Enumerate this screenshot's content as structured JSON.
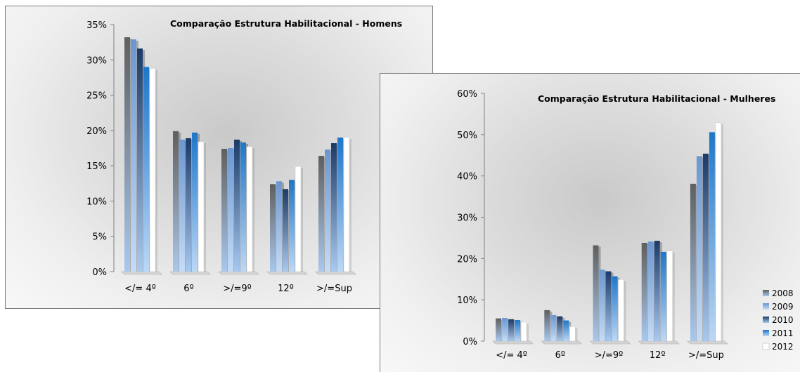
{
  "chart_data": [
    {
      "type": "bar",
      "title": "Comparação Estrutura Habilitacional - Homens",
      "categories": [
        "</= 4º",
        "6º",
        ">/=9º",
        "12º",
        ">/=Sup"
      ],
      "y_ticks": [
        "0%",
        "5%",
        "10%",
        "15%",
        "20%",
        "25%",
        "30%",
        "35%"
      ],
      "ylim": [
        0,
        35
      ],
      "grid": false,
      "series": [
        {
          "values": [
            33.2,
            19.9,
            17.4,
            12.4,
            16.4
          ]
        },
        {
          "values": [
            32.9,
            18.7,
            17.5,
            12.8,
            17.3
          ]
        },
        {
          "values": [
            31.6,
            18.9,
            18.7,
            11.7,
            18.2
          ]
        },
        {
          "values": [
            29.0,
            19.7,
            18.3,
            13.0,
            19.0
          ]
        },
        {
          "values": [
            28.8,
            18.4,
            17.7,
            14.9,
            19.0
          ]
        }
      ]
    },
    {
      "type": "bar",
      "title": "Comparação Estrutura Habilitacional - Mulheres",
      "categories": [
        "</= 4º",
        "6º",
        ">/=9º",
        "12º",
        ">/=Sup"
      ],
      "y_ticks": [
        "0%",
        "10%",
        "20%",
        "30%",
        "40%",
        "50%",
        "60%"
      ],
      "ylim": [
        0,
        60
      ],
      "grid": false,
      "legend_position": "bottom-right",
      "series": [
        {
          "name": "2008",
          "values": [
            5.5,
            7.5,
            23.2,
            23.8,
            38.1
          ]
        },
        {
          "name": "2009",
          "values": [
            5.6,
            6.3,
            17.3,
            24.1,
            44.8
          ]
        },
        {
          "name": "2010",
          "values": [
            5.3,
            6.0,
            16.9,
            24.3,
            45.4
          ]
        },
        {
          "name": "2011",
          "values": [
            5.1,
            5.0,
            15.7,
            21.6,
            50.6
          ]
        },
        {
          "name": "2012",
          "values": [
            4.6,
            3.5,
            14.9,
            21.8,
            52.9
          ]
        }
      ]
    }
  ],
  "colors": {
    "series": [
      "#5f5f5f",
      "#6a96d0",
      "#1c3a66",
      "#1e76c9",
      "#ffffff"
    ],
    "axis": "#808080"
  }
}
